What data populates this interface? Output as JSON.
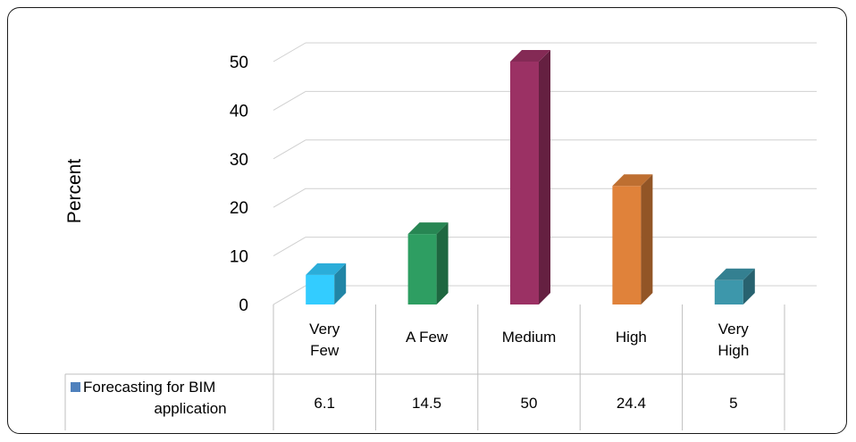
{
  "chart_data": {
    "type": "bar",
    "style": "3d-column-with-data-table",
    "ylabel": "Percent",
    "ylim": [
      0,
      50
    ],
    "yticks": [
      "0",
      "10",
      "20",
      "30",
      "40",
      "50"
    ],
    "categories": [
      [
        "Very",
        "Few"
      ],
      [
        "A Few"
      ],
      [
        "Medium"
      ],
      [
        "High"
      ],
      [
        "Very",
        "High"
      ]
    ],
    "series": [
      {
        "name": [
          "Forecasting for BIM",
          "application"
        ],
        "values": [
          6.1,
          14.5,
          50,
          24.4,
          5
        ],
        "value_labels": [
          "6.1",
          "14.5",
          "50",
          "24.4",
          "5"
        ],
        "legend_color": "#4f81bd"
      }
    ],
    "bar_colors": [
      "#33ccff",
      "#2e9e62",
      "#9b3164",
      "#e0823a",
      "#3d97ab"
    ],
    "grid": true,
    "legend": "data-table"
  }
}
